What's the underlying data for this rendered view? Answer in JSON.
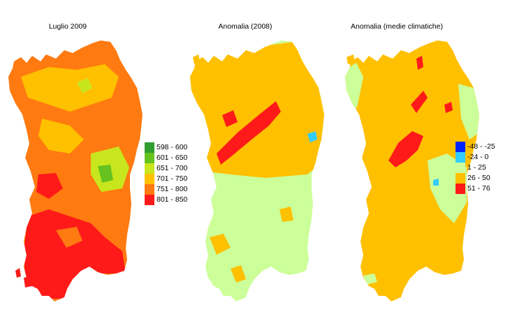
{
  "maps": [
    {
      "title": "Luglio 2009",
      "legend": [
        {
          "label": "598 - 600",
          "color": "#2f9e2f"
        },
        {
          "label": "601 - 650",
          "color": "#66c21f"
        },
        {
          "label": "651 - 700",
          "color": "#c8e61e"
        },
        {
          "label": "701 - 750",
          "color": "#ffc000"
        },
        {
          "label": "751 - 800",
          "color": "#ff7a10"
        },
        {
          "label": "801 - 850",
          "color": "#ff1a1a"
        }
      ]
    },
    {
      "title": "Anomalia (2008)"
    },
    {
      "title": "Anomalia (medie climatiche)",
      "legend": [
        {
          "label": "-48 - -25",
          "color": "#0026ff"
        },
        {
          "label": "-24 - 0",
          "color": "#33ccff"
        },
        {
          "label": "1 - 25",
          "color": "#ccff99"
        },
        {
          "label": "26 - 50",
          "color": "#ffc000"
        },
        {
          "label": "51 - 76",
          "color": "#ff1a1a"
        }
      ]
    }
  ]
}
